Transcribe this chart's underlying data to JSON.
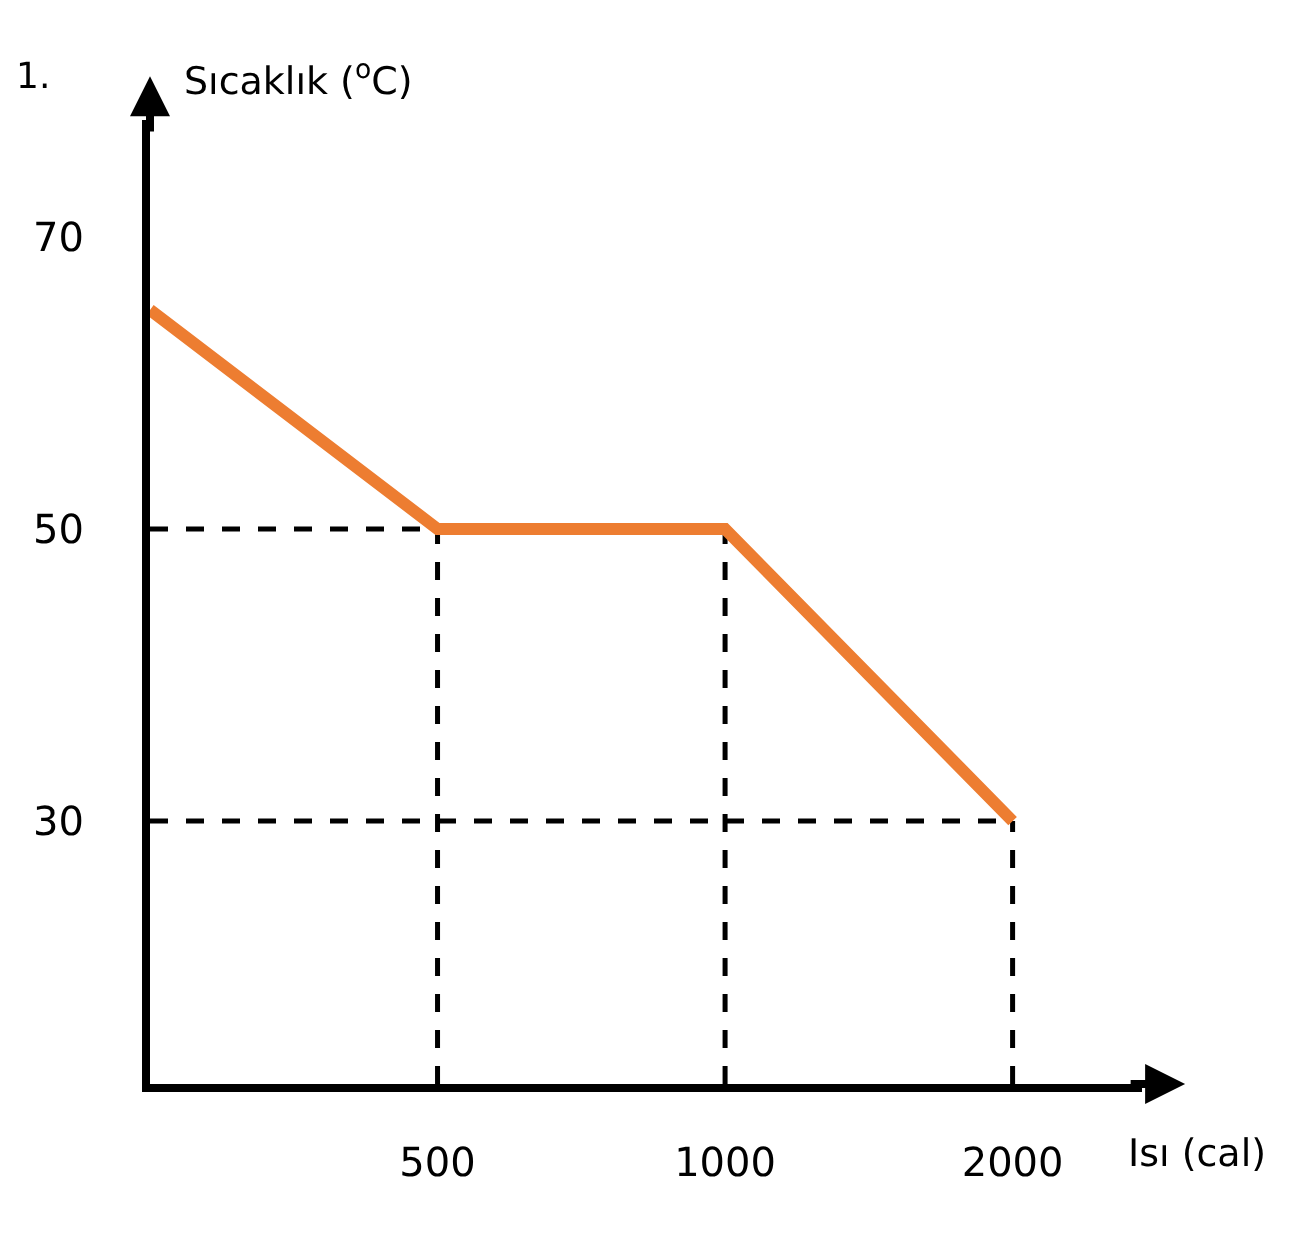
{
  "chart_data": {
    "type": "line",
    "title": "1.",
    "xlabel": "Isı (cal)",
    "ylabel": "Sıcaklık ($^{o}$C)",
    "categories": [
      null,
      "500",
      "1000",
      "2000"
    ],
    "series": [
      {
        "color": "#ed7d31",
        "values": [
          65,
          50,
          50,
          30
        ]
      }
    ],
    "ref_lines": [
      {
        "axis": "y",
        "value": 50,
        "color": "#000000",
        "line_style": "dashed"
      },
      {
        "axis": "y",
        "value": 30,
        "color": "#000000",
        "line_style": "dashed"
      },
      {
        "axis": "x",
        "value": "500",
        "color": "#000000",
        "line_style": "dashed"
      },
      {
        "axis": "x",
        "value": "1000",
        "color": "#000000",
        "line_style": "dashed"
      },
      {
        "axis": "x",
        "value": "2000",
        "color": "#000000",
        "line_style": "dashed"
      }
    ],
    "ylim": [
      12,
      78
    ],
    "yticks": [
      30,
      50,
      70
    ],
    "marker": "none",
    "line_style": "solid"
  }
}
